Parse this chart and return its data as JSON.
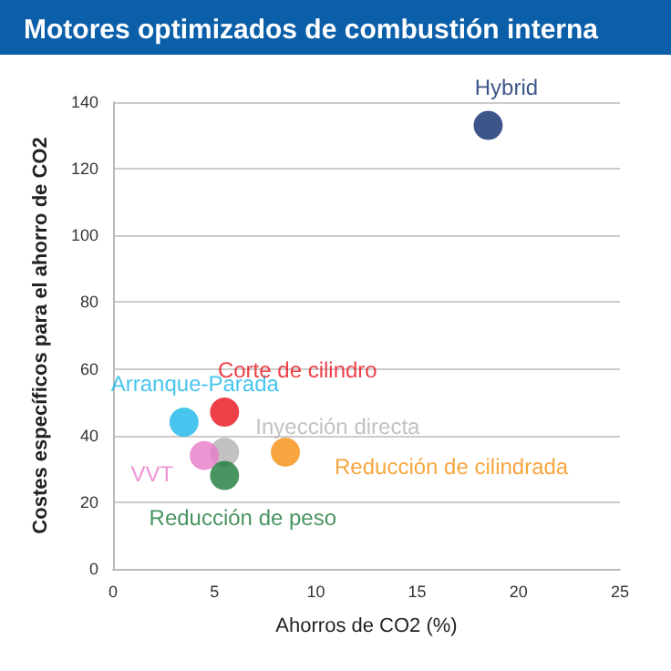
{
  "chart_data": {
    "type": "scatter",
    "title": "Motores optimizados de combustión interna",
    "xlabel": "Ahorros de CO2 (%)",
    "ylabel": "Costes específicos para el ahorro de CO2",
    "xlim": [
      0,
      25
    ],
    "xticks": [
      0,
      5,
      10,
      15,
      20,
      25
    ],
    "ylim": [
      0,
      140
    ],
    "yticks": [
      0,
      20,
      40,
      60,
      80,
      100,
      120,
      140
    ],
    "grid": "y",
    "marker": "circle",
    "series": [
      {
        "name": "Hybrid",
        "color": "#0d2a6b",
        "x": [
          18.5
        ],
        "values": [
          133
        ]
      },
      {
        "name": "Arranque-Parada",
        "color": "#1ab7ea",
        "x": [
          3.5
        ],
        "values": [
          44
        ]
      },
      {
        "name": "Corte de cilindro",
        "color": "#e8101a",
        "x": [
          5.5
        ],
        "values": [
          47
        ]
      },
      {
        "name": "Inyección directa",
        "color": "#b3b3b3",
        "x": [
          5.5
        ],
        "values": [
          35
        ]
      },
      {
        "name": "VVT",
        "color": "#e879c8",
        "x": [
          4.5
        ],
        "values": [
          34
        ]
      },
      {
        "name": "Reducción de peso",
        "color": "#1a7a3a",
        "x": [
          5.5
        ],
        "values": [
          28
        ]
      },
      {
        "name": "Reducción de cilindrada",
        "color": "#f5900f",
        "x": [
          8.5
        ],
        "values": [
          35
        ]
      }
    ]
  }
}
